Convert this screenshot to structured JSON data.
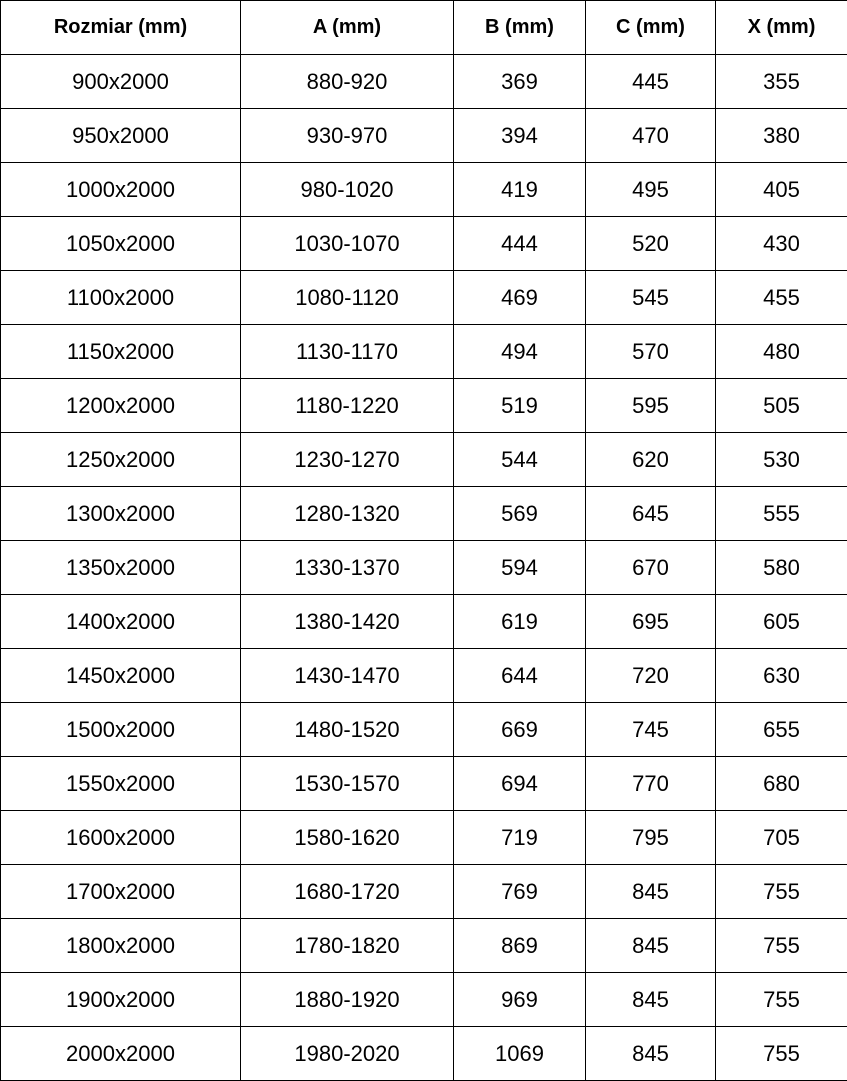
{
  "table": {
    "headers": [
      "Rozmiar (mm)",
      "A (mm)",
      "B (mm)",
      "C (mm)",
      "X (mm)"
    ],
    "rows": [
      [
        "900x2000",
        "880-920",
        "369",
        "445",
        "355"
      ],
      [
        "950x2000",
        "930-970",
        "394",
        "470",
        "380"
      ],
      [
        "1000x2000",
        "980-1020",
        "419",
        "495",
        "405"
      ],
      [
        "1050x2000",
        "1030-1070",
        "444",
        "520",
        "430"
      ],
      [
        "1100x2000",
        "1080-1120",
        "469",
        "545",
        "455"
      ],
      [
        "1150x2000",
        "1130-1170",
        "494",
        "570",
        "480"
      ],
      [
        "1200x2000",
        "1180-1220",
        "519",
        "595",
        "505"
      ],
      [
        "1250x2000",
        "1230-1270",
        "544",
        "620",
        "530"
      ],
      [
        "1300x2000",
        "1280-1320",
        "569",
        "645",
        "555"
      ],
      [
        "1350x2000",
        "1330-1370",
        "594",
        "670",
        "580"
      ],
      [
        "1400x2000",
        "1380-1420",
        "619",
        "695",
        "605"
      ],
      [
        "1450x2000",
        "1430-1470",
        "644",
        "720",
        "630"
      ],
      [
        "1500x2000",
        "1480-1520",
        "669",
        "745",
        "655"
      ],
      [
        "1550x2000",
        "1530-1570",
        "694",
        "770",
        "680"
      ],
      [
        "1600x2000",
        "1580-1620",
        "719",
        "795",
        "705"
      ],
      [
        "1700x2000",
        "1680-1720",
        "769",
        "845",
        "755"
      ],
      [
        "1800x2000",
        "1780-1820",
        "869",
        "845",
        "755"
      ],
      [
        "1900x2000",
        "1880-1920",
        "969",
        "845",
        "755"
      ],
      [
        "2000x2000",
        "1980-2020",
        "1069",
        "845",
        "755"
      ]
    ]
  }
}
